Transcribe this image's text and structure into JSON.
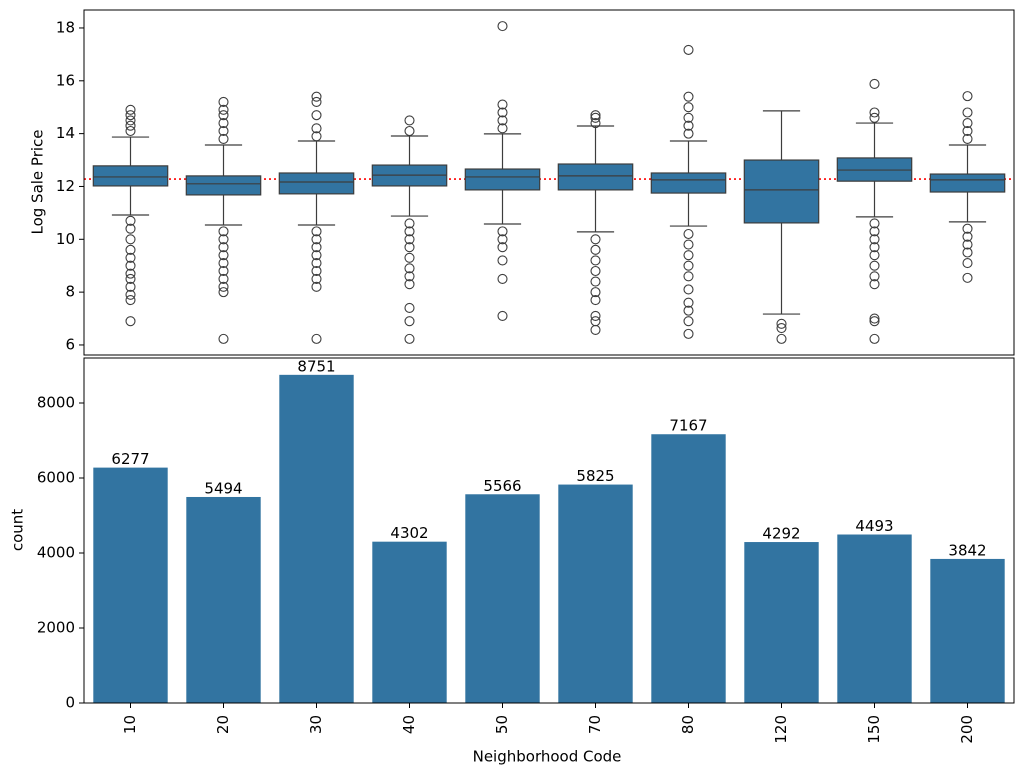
{
  "chart_data": [
    {
      "type": "box",
      "ylabel": "Log Sale Price",
      "color": "#3274a1",
      "ylim": [
        5.62,
        18.68
      ],
      "yticks": [
        6,
        8,
        10,
        12,
        14,
        16,
        18
      ],
      "hline": {
        "value": 12.28,
        "color": "#ff0000"
      },
      "boxes": [
        {
          "whislo": 10.92,
          "q1": 12.02,
          "med": 12.36,
          "q3": 12.78,
          "whishi": 13.87,
          "fliers": [
            14.1,
            14.3,
            14.5,
            14.7,
            14.9,
            10.7,
            10.4,
            10.0,
            9.6,
            9.3,
            9.0,
            8.7,
            8.5,
            8.2,
            7.9,
            7.7,
            6.9
          ]
        },
        {
          "whislo": 10.54,
          "q1": 11.68,
          "med": 12.1,
          "q3": 12.4,
          "whishi": 13.57,
          "fliers": [
            13.8,
            14.1,
            14.4,
            14.7,
            14.9,
            15.2,
            10.3,
            10.0,
            9.7,
            9.4,
            9.1,
            8.8,
            8.5,
            8.2,
            8.0,
            6.23
          ]
        },
        {
          "whislo": 10.54,
          "q1": 11.72,
          "med": 12.17,
          "q3": 12.51,
          "whishi": 13.72,
          "fliers": [
            13.9,
            14.2,
            14.7,
            15.2,
            15.4,
            10.3,
            10.0,
            9.7,
            9.4,
            9.1,
            8.8,
            8.5,
            8.2,
            6.23
          ]
        },
        {
          "whislo": 10.88,
          "q1": 12.02,
          "med": 12.43,
          "q3": 12.81,
          "whishi": 13.91,
          "fliers": [
            14.1,
            14.5,
            10.6,
            10.3,
            10.0,
            9.7,
            9.3,
            8.9,
            8.6,
            8.3,
            7.4,
            6.9,
            6.23
          ]
        },
        {
          "whislo": 10.58,
          "q1": 11.87,
          "med": 12.36,
          "q3": 12.66,
          "whishi": 13.99,
          "fliers": [
            14.2,
            14.5,
            14.8,
            15.1,
            18.07,
            10.3,
            10.0,
            9.7,
            9.2,
            8.5,
            7.1
          ]
        },
        {
          "whislo": 10.28,
          "q1": 11.87,
          "med": 12.4,
          "q3": 12.85,
          "whishi": 14.29,
          "fliers": [
            14.4,
            14.6,
            14.7,
            10.0,
            9.6,
            9.2,
            8.8,
            8.4,
            8.0,
            7.7,
            7.1,
            6.9,
            6.57
          ]
        },
        {
          "whislo": 10.5,
          "q1": 11.75,
          "med": 12.25,
          "q3": 12.51,
          "whishi": 13.72,
          "fliers": [
            14.0,
            14.3,
            14.6,
            15.0,
            15.4,
            17.17,
            10.2,
            9.8,
            9.4,
            9.0,
            8.6,
            8.1,
            7.6,
            7.3,
            6.9,
            6.42
          ]
        },
        {
          "whislo": 7.17,
          "q1": 10.62,
          "med": 11.87,
          "q3": 13.0,
          "whishi": 14.86,
          "fliers": [
            6.8,
            6.64,
            6.23
          ]
        },
        {
          "whislo": 10.85,
          "q1": 12.2,
          "med": 12.62,
          "q3": 13.08,
          "whishi": 14.4,
          "fliers": [
            14.6,
            14.8,
            15.88,
            10.6,
            10.3,
            10.0,
            9.7,
            9.4,
            9.0,
            8.6,
            8.3,
            7.0,
            6.9,
            6.23
          ]
        },
        {
          "whislo": 10.66,
          "q1": 11.79,
          "med": 12.25,
          "q3": 12.47,
          "whishi": 13.57,
          "fliers": [
            13.8,
            14.1,
            14.4,
            14.8,
            15.42,
            10.4,
            10.1,
            9.8,
            9.5,
            9.1,
            8.54
          ]
        }
      ]
    },
    {
      "type": "bar",
      "xlabel": "Neighborhood Code",
      "ylabel": "count",
      "color": "#3274a1",
      "categories": [
        "10",
        "20",
        "30",
        "40",
        "50",
        "70",
        "80",
        "120",
        "150",
        "200"
      ],
      "values": [
        6277,
        5494,
        8751,
        4302,
        5566,
        5825,
        7167,
        4292,
        4493,
        3842
      ],
      "ylim": [
        0,
        9200
      ],
      "yticks": [
        0,
        2000,
        4000,
        6000,
        8000
      ]
    }
  ]
}
